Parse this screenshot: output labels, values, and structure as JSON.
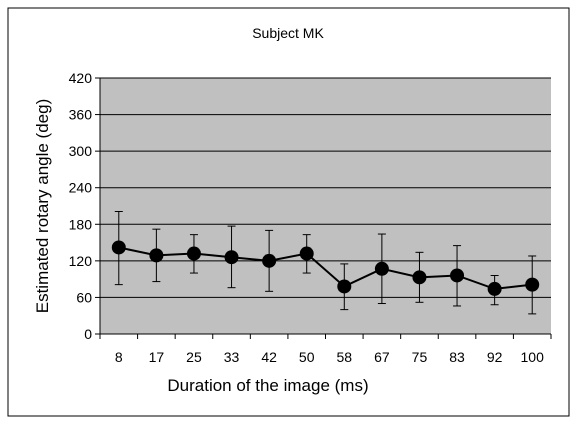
{
  "chart_data": {
    "type": "line",
    "title": "Subject MK",
    "xlabel": "Duration of the image (ms)",
    "ylabel": "Estimated rotary angle (deg)",
    "categories": [
      "8",
      "17",
      "25",
      "33",
      "42",
      "50",
      "58",
      "67",
      "75",
      "83",
      "92",
      "100"
    ],
    "series": [
      {
        "values": [
          142,
          129,
          132,
          126,
          120,
          132,
          78,
          107,
          93,
          96,
          74,
          81
        ],
        "error_low": [
          81,
          86,
          100,
          76,
          70,
          100,
          40,
          50,
          52,
          46,
          48,
          33
        ],
        "error_high": [
          201,
          172,
          163,
          177,
          170,
          163,
          115,
          164,
          134,
          145,
          96,
          128
        ]
      }
    ],
    "ylim": [
      0,
      420
    ],
    "yticks": [
      0,
      60,
      120,
      180,
      240,
      300,
      360,
      420
    ],
    "grid": true,
    "legend": "none",
    "colors": {
      "plot_background": "#c0c0c0",
      "gridline": "#000000",
      "series": "#000000"
    }
  }
}
